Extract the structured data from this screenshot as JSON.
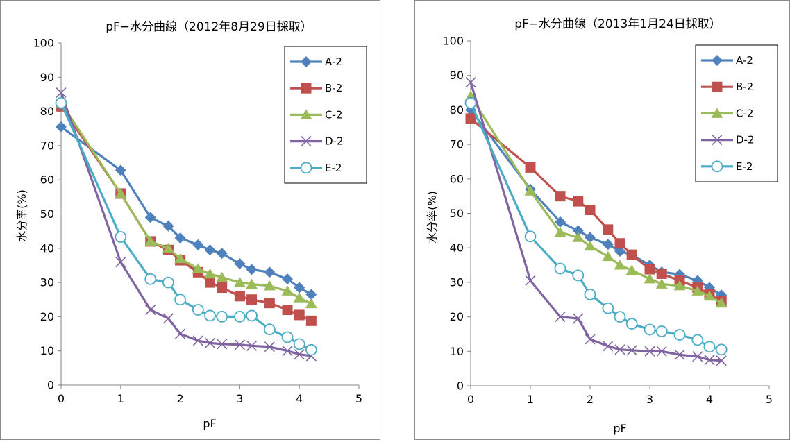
{
  "chart_data": [
    {
      "type": "line",
      "title": "pF−水分曲線（2012年8月29日採取）",
      "xlabel": "pF",
      "ylabel": "水分率(%)",
      "xlim": [
        0,
        5
      ],
      "ylim": [
        0,
        100
      ],
      "xticks": [
        "0",
        "1",
        "2",
        "3",
        "4",
        "5"
      ],
      "yticks": [
        "0",
        "10",
        "20",
        "30",
        "40",
        "50",
        "60",
        "70",
        "80",
        "90",
        "100"
      ],
      "grid": false,
      "legend_position": "top-right",
      "series": [
        {
          "name": "A-2",
          "color": "#4f81bd",
          "marker": "diamond",
          "x": [
            0,
            1,
            1.5,
            1.8,
            2,
            2.3,
            2.5,
            2.7,
            3,
            3.2,
            3.5,
            3.8,
            4,
            4.2
          ],
          "y": [
            75.5,
            62.8,
            49.0,
            46.5,
            43.0,
            41.0,
            39.5,
            38.5,
            35.5,
            33.8,
            33.0,
            31.0,
            28.5,
            26.5
          ]
        },
        {
          "name": "B-2",
          "color": "#c0504d",
          "marker": "square",
          "x": [
            0,
            1,
            1.5,
            1.8,
            2,
            2.3,
            2.5,
            2.7,
            3,
            3.2,
            3.5,
            3.8,
            4,
            4.2
          ],
          "y": [
            81.5,
            56.0,
            42.0,
            39.5,
            36.5,
            33.0,
            30.0,
            28.5,
            26.0,
            25.0,
            24.0,
            22.0,
            20.5,
            18.8
          ]
        },
        {
          "name": "C-2",
          "color": "#9bbb59",
          "marker": "triangle",
          "x": [
            0,
            1,
            1.5,
            1.8,
            2,
            2.3,
            2.5,
            2.7,
            3,
            3.2,
            3.5,
            3.8,
            4,
            4.2
          ],
          "y": [
            82.5,
            56.0,
            42.0,
            40.0,
            37.0,
            34.0,
            32.5,
            31.5,
            30.0,
            29.5,
            29.0,
            27.5,
            25.5,
            23.8
          ]
        },
        {
          "name": "D-2",
          "color": "#8064a2",
          "marker": "x",
          "x": [
            0,
            1,
            1.5,
            1.8,
            2,
            2.3,
            2.5,
            2.7,
            3,
            3.2,
            3.5,
            3.8,
            4,
            4.2
          ],
          "y": [
            85.5,
            36.0,
            22.0,
            19.5,
            15.0,
            13.0,
            12.3,
            12.0,
            11.8,
            11.5,
            11.2,
            10.0,
            9.0,
            8.5
          ]
        },
        {
          "name": "E-2",
          "color": "#4bacc6",
          "marker": "circle",
          "x": [
            0,
            1,
            1.5,
            1.8,
            2,
            2.3,
            2.5,
            2.7,
            3,
            3.2,
            3.5,
            3.8,
            4,
            4.2
          ],
          "y": [
            82.5,
            43.3,
            31.0,
            30.0,
            25.0,
            22.0,
            20.3,
            20.0,
            20.0,
            20.3,
            16.3,
            14.0,
            12.0,
            10.3
          ]
        }
      ]
    },
    {
      "type": "line",
      "title": "pF−水分曲線（2013年1月24日採取）",
      "xlabel": "pF",
      "ylabel": "水分率(%)",
      "xlim": [
        0,
        5
      ],
      "ylim": [
        0,
        100
      ],
      "xticks": [
        "0",
        "1",
        "2",
        "3",
        "4",
        "5"
      ],
      "yticks": [
        "0",
        "10",
        "20",
        "30",
        "40",
        "50",
        "60",
        "70",
        "80",
        "90",
        "100"
      ],
      "grid": false,
      "legend_position": "top-right",
      "series": [
        {
          "name": "A-2",
          "color": "#4f81bd",
          "marker": "diamond",
          "x": [
            0,
            1,
            1.5,
            1.8,
            2,
            2.3,
            2.5,
            2.7,
            3,
            3.2,
            3.5,
            3.8,
            4,
            4.2
          ],
          "y": [
            80.0,
            57.0,
            47.5,
            45.0,
            43.0,
            41.0,
            39.0,
            38.0,
            35.0,
            33.0,
            32.3,
            30.5,
            28.5,
            26.3
          ]
        },
        {
          "name": "B-2",
          "color": "#c0504d",
          "marker": "square",
          "x": [
            0,
            1,
            1.5,
            1.8,
            2,
            2.3,
            2.5,
            2.7,
            3,
            3.2,
            3.5,
            3.8,
            4,
            4.2
          ],
          "y": [
            77.5,
            63.3,
            55.0,
            53.5,
            51.0,
            45.3,
            41.3,
            38.0,
            33.8,
            32.5,
            30.5,
            28.5,
            26.5,
            24.5
          ]
        },
        {
          "name": "C-2",
          "color": "#9bbb59",
          "marker": "triangle",
          "x": [
            0,
            1,
            1.5,
            1.8,
            2,
            2.3,
            2.5,
            2.7,
            3,
            3.2,
            3.5,
            3.8,
            4,
            4.2
          ],
          "y": [
            84.0,
            56.5,
            44.5,
            43.0,
            40.5,
            37.5,
            35.0,
            33.5,
            31.0,
            29.5,
            29.0,
            27.5,
            26.0,
            24.0
          ]
        },
        {
          "name": "D-2",
          "color": "#8064a2",
          "marker": "x",
          "x": [
            0,
            1,
            1.5,
            1.8,
            2,
            2.3,
            2.5,
            2.7,
            3,
            3.2,
            3.5,
            3.8,
            4,
            4.2
          ],
          "y": [
            88.0,
            30.5,
            20.0,
            19.5,
            13.5,
            11.5,
            10.5,
            10.3,
            10.0,
            10.0,
            9.0,
            8.5,
            7.5,
            7.3
          ]
        },
        {
          "name": "E-2",
          "color": "#4bacc6",
          "marker": "circle",
          "x": [
            0,
            1,
            1.5,
            1.8,
            2,
            2.3,
            2.5,
            2.7,
            3,
            3.2,
            3.5,
            3.8,
            4,
            4.2
          ],
          "y": [
            82.0,
            43.3,
            34.0,
            32.0,
            26.5,
            22.5,
            20.0,
            18.0,
            16.3,
            15.8,
            14.8,
            13.3,
            11.3,
            10.5
          ]
        }
      ]
    }
  ]
}
